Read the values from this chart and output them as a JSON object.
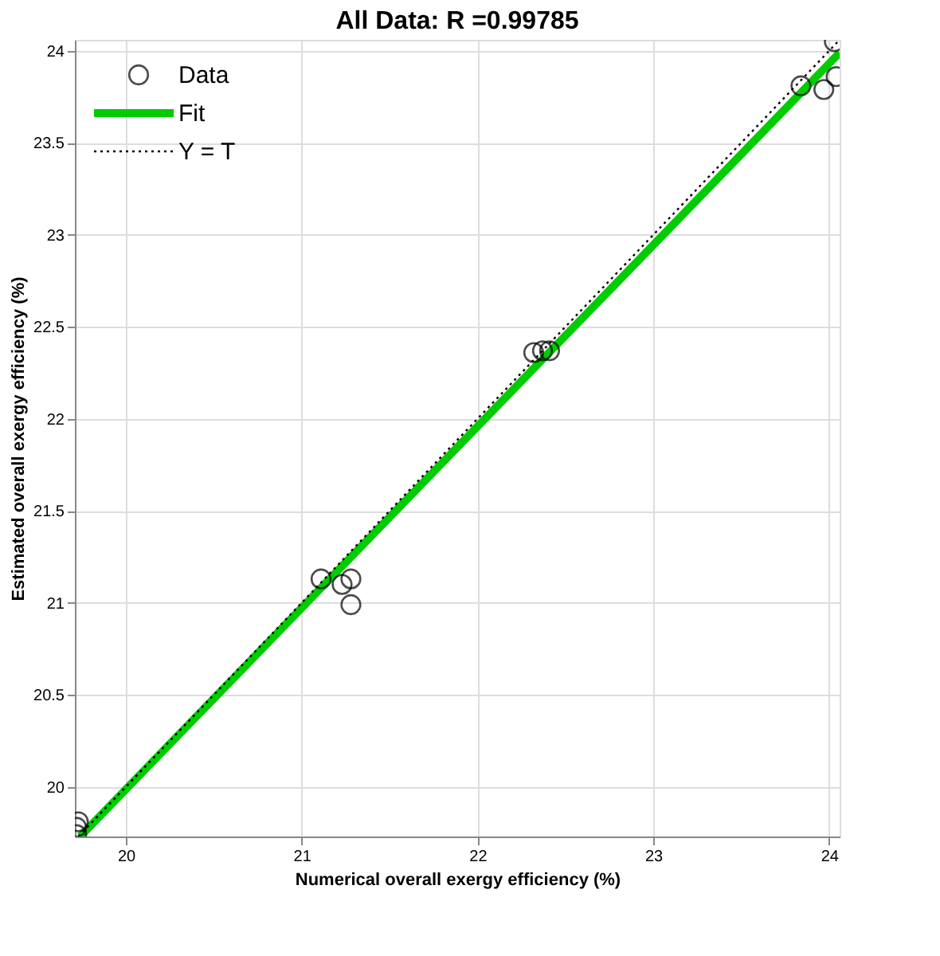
{
  "chart_data": {
    "type": "scatter",
    "title": "All Data: R =0.99785",
    "xlabel": "Numerical overall exergy efficiency (%)",
    "ylabel": "Estimated overall exergy efficiency (%)",
    "xlim": [
      19.71,
      24.06
    ],
    "ylim": [
      19.73,
      24.06
    ],
    "xticks": [
      20,
      21,
      22,
      23,
      24
    ],
    "yticks": [
      20,
      20.5,
      21,
      21.5,
      22,
      22.5,
      23,
      23.5,
      24
    ],
    "grid": true,
    "legend": "top left",
    "series": [
      {
        "name": "Data",
        "marker": "circle",
        "color": "#000000",
        "x": [
          19.72,
          19.73,
          19.72,
          21.11,
          21.23,
          21.28,
          21.28,
          22.32,
          22.37,
          22.41,
          23.84,
          23.97,
          24.03,
          24.04
        ],
        "values": [
          19.78,
          19.81,
          19.74,
          21.13,
          21.1,
          21.13,
          20.99,
          22.36,
          22.37,
          22.37,
          23.81,
          23.79,
          24.05,
          23.86
        ]
      },
      {
        "name": "Fit",
        "type": "line",
        "line_style": "solid",
        "color": "#00cc00",
        "x": [
          19.74,
          24.06
        ],
        "values": [
          19.73,
          23.99
        ]
      },
      {
        "name": "Y = T",
        "type": "line",
        "line_style": "dotted",
        "color": "#000000",
        "x": [
          19.73,
          24.06
        ],
        "values": [
          19.73,
          24.06
        ]
      }
    ]
  }
}
